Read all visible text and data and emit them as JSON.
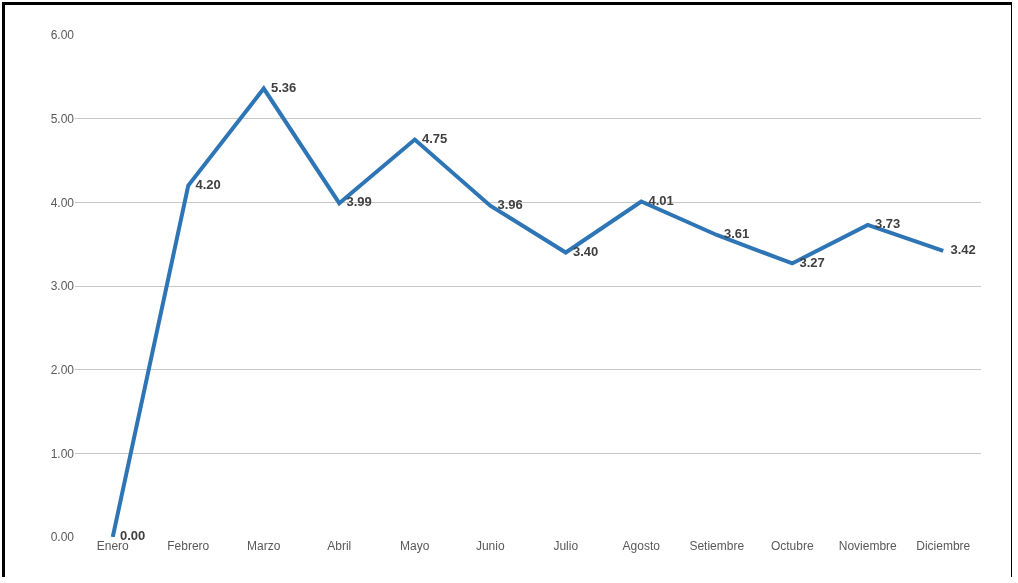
{
  "chart_data": {
    "type": "line",
    "categories": [
      "Enero",
      "Febrero",
      "Marzo",
      "Abril",
      "Mayo",
      "Junio",
      "Julio",
      "Agosto",
      "Setiembre",
      "Octubre",
      "Noviembre",
      "Diciembre"
    ],
    "series": [
      {
        "color": "#2e75b6",
        "values": [
          0,
          4.2,
          5.36,
          3.99,
          4.75,
          3.96,
          3.4,
          4.01,
          3.61,
          3.27,
          3.73,
          3.42
        ],
        "value_labels": [
          "0.00",
          "4.20",
          "5.36",
          "3.99",
          "4.75",
          "3.96",
          "3.40",
          "4.01",
          "3.61",
          "3.27",
          "3.73",
          "3.42"
        ]
      }
    ],
    "ylim": [
      0,
      6
    ],
    "yticks": [
      {
        "value": 0,
        "label": "0.00"
      },
      {
        "value": 1,
        "label": "1.00"
      },
      {
        "value": 2,
        "label": "2.00"
      },
      {
        "value": 3,
        "label": "3.00"
      },
      {
        "value": 4,
        "label": "4.00"
      },
      {
        "value": 5,
        "label": "5.00"
      },
      {
        "value": 6,
        "label": "6.00"
      }
    ],
    "grid": "y",
    "marker": "none",
    "line_style": "solid",
    "legend": false
  }
}
